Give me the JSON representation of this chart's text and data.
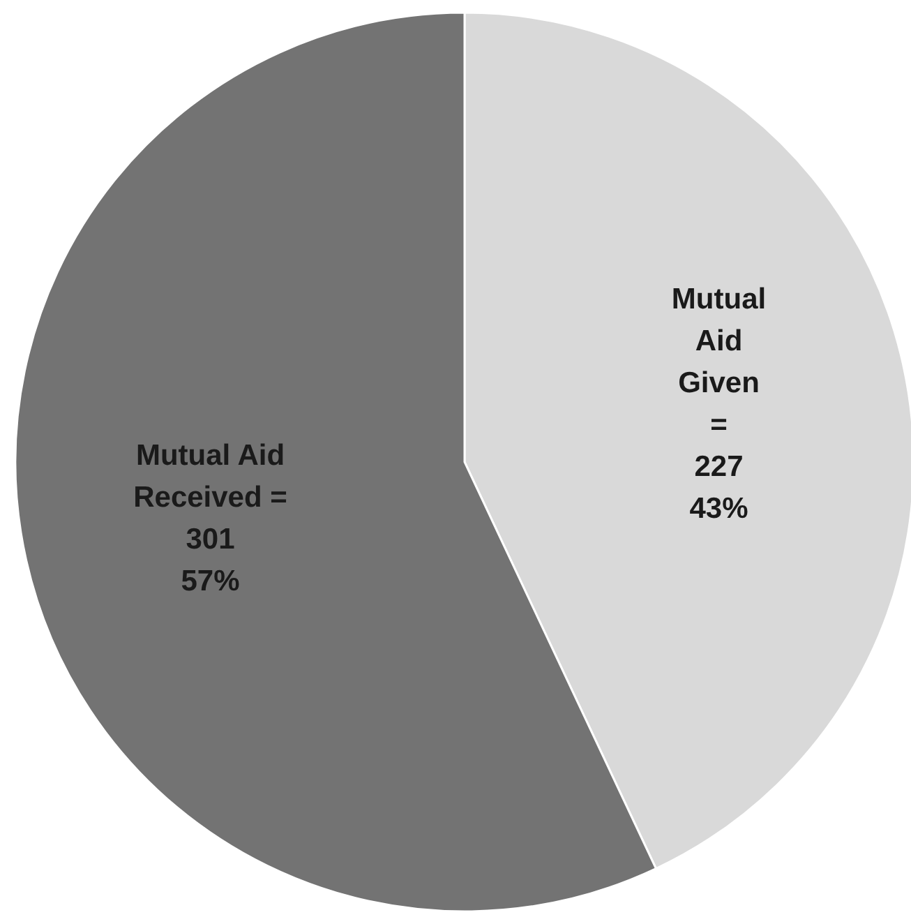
{
  "chart_data": {
    "type": "pie",
    "categories": [
      "Mutual Aid Given =",
      "Mutual Aid Received ="
    ],
    "values": [
      227,
      301
    ],
    "value_labels": [
      "227 43%",
      "301 57%"
    ],
    "colors": [
      "#d9d9d9",
      "#737373"
    ]
  }
}
